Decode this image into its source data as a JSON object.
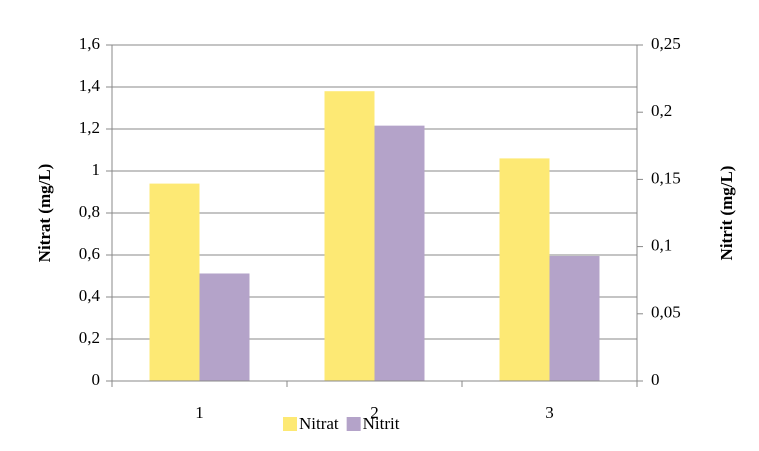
{
  "chart_data": {
    "type": "bar",
    "categories": [
      "1",
      "2",
      "3"
    ],
    "series": [
      {
        "name": "Nitrat",
        "color": "#fde974",
        "values": [
          0.94,
          1.38,
          1.06
        ]
      },
      {
        "name": "Nitrit",
        "color": "#b4a3c9",
        "values": [
          0.08,
          0.19,
          0.093
        ],
        "axis": "y2"
      }
    ],
    "ylabel": "Nitrat (mg/L)",
    "y2label": "Nitrit (mg/L)",
    "ylim": [
      0,
      1.6
    ],
    "yticks": [
      0,
      {
        "value": 0.2,
        "label": "0,2"
      },
      {
        "value": 0.4,
        "label": "0,4"
      },
      {
        "value": 0.6,
        "label": "0,6"
      },
      {
        "value": 0.8,
        "label": "0,8"
      },
      1,
      {
        "value": 1.2,
        "label": "1,2"
      },
      {
        "value": 1.4,
        "label": "1,4"
      },
      {
        "value": 1.6,
        "label": "1,6"
      }
    ],
    "y2lim": [
      0,
      0.25
    ],
    "y2ticks": [
      0,
      {
        "value": 0.05,
        "label": "0,05"
      },
      {
        "value": 0.1,
        "label": "0,1"
      },
      {
        "value": 0.15,
        "label": "0,15"
      },
      {
        "value": 0.2,
        "label": "0,2"
      },
      {
        "value": 0.25,
        "label": "0,25"
      }
    ],
    "grid": true,
    "legend": "bottom"
  }
}
